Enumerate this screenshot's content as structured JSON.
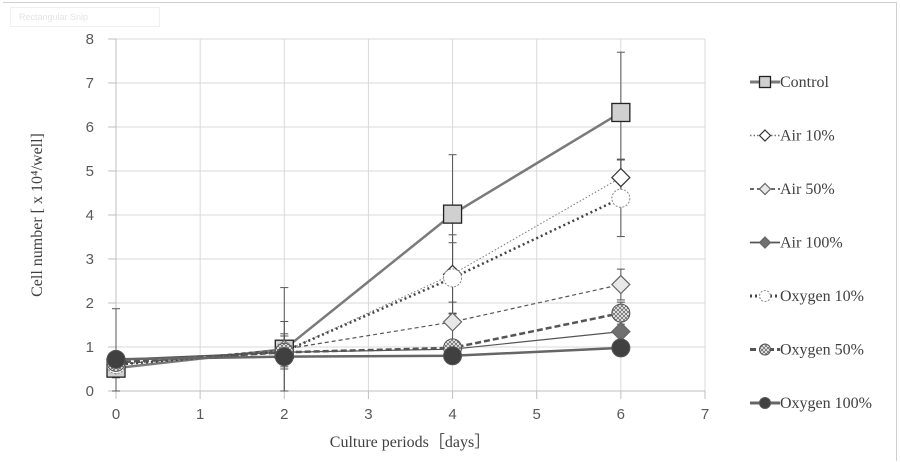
{
  "artifact": {
    "snip_label": "Rectangular Snip"
  },
  "chart_data": {
    "type": "line",
    "title": "",
    "xlabel": "Culture periods［days］",
    "ylabel": "Cell number [ x 10⁴/well]",
    "xlim": [
      0,
      7
    ],
    "ylim": [
      0,
      8
    ],
    "xticks": [
      "0",
      "1",
      "2",
      "3",
      "4",
      "5",
      "6",
      "7"
    ],
    "yticks": [
      "0",
      "1",
      "2",
      "3",
      "4",
      "5",
      "6",
      "7",
      "8"
    ],
    "grid": true,
    "legend_position": "right",
    "x": [
      0,
      2,
      4,
      6
    ],
    "series": [
      {
        "name": "Control",
        "values": [
          0.52,
          0.95,
          4.02,
          6.33
        ],
        "err": [
          1.35,
          1.4,
          1.35,
          1.37
        ],
        "marker": "square",
        "fill": "#d0d0d0",
        "stroke": "#7a7a7a",
        "dash": "",
        "width": 2.5
      },
      {
        "name": "Air 10%",
        "values": [
          0.6,
          0.9,
          2.65,
          4.85
        ],
        "err": [
          0.3,
          0.4,
          0.9,
          0.42
        ],
        "marker": "diamond",
        "fill": "#ffffff",
        "stroke": "#777777",
        "dash": "1.5,2",
        "width": 1
      },
      {
        "name": "Air 50%",
        "values": [
          0.6,
          0.95,
          1.57,
          2.42
        ],
        "err": [
          0.2,
          0.3,
          0.45,
          0.35
        ],
        "marker": "diamond",
        "fill": "#e8e8e8",
        "stroke": "#555555",
        "dash": "4,3",
        "width": 1.2
      },
      {
        "name": "Air 100%",
        "values": [
          0.72,
          0.88,
          0.95,
          1.35
        ],
        "err": [
          0.15,
          0.2,
          0.1,
          0.1
        ],
        "marker": "diamond",
        "fill": "#707070",
        "stroke": "#555555",
        "dash": "",
        "width": 1.2
      },
      {
        "name": "Oxygen 10%",
        "values": [
          0.6,
          0.9,
          2.57,
          4.38
        ],
        "err": [
          0.25,
          0.35,
          0.8,
          0.87
        ],
        "marker": "circle",
        "fill": "#ffffff",
        "stroke": "#444444",
        "dash": "2,3",
        "width": 2.5
      },
      {
        "name": "Oxygen 50%",
        "values": [
          0.65,
          0.88,
          0.98,
          1.77
        ],
        "err": [
          0.15,
          0.2,
          0.1,
          0.25
        ],
        "marker": "circle-hatch",
        "fill": "#dcdcdc",
        "stroke": "#555555",
        "dash": "6,3",
        "width": 2.5
      },
      {
        "name": "Oxygen 100%",
        "values": [
          0.72,
          0.78,
          0.8,
          0.98
        ],
        "err": [
          0.1,
          0.8,
          0.1,
          0.05
        ],
        "marker": "circle",
        "fill": "#404040",
        "stroke": "#666666",
        "dash": "",
        "width": 2.5
      }
    ]
  }
}
